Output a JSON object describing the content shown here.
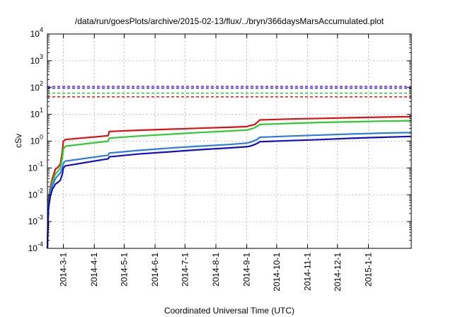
{
  "chart_data": {
    "type": "line",
    "title": "/data/run/goesPlots/archive/2015-02-13/flux/../bryn/366daysMarsAccumulated.plot",
    "xlabel": "Coordinated Universal Time (UTC)",
    "ylabel": "cSv",
    "y_scale": "log",
    "ylim": [
      0.0001,
      10000
    ],
    "xlim": [
      "2014-02-13",
      "2015-02-13"
    ],
    "grid": true,
    "y_ticks": [
      {
        "value": 0.0001,
        "base": "10",
        "exp": "-4"
      },
      {
        "value": 0.001,
        "base": "10",
        "exp": "-3"
      },
      {
        "value": 0.01,
        "base": "10",
        "exp": "-2"
      },
      {
        "value": 0.1,
        "base": "10",
        "exp": "-1"
      },
      {
        "value": 1,
        "base": "10",
        "exp": "0"
      },
      {
        "value": 10,
        "base": "10",
        "exp": "1"
      },
      {
        "value": 100,
        "base": "10",
        "exp": "2"
      },
      {
        "value": 1000,
        "base": "10",
        "exp": "3"
      },
      {
        "value": 10000,
        "base": "10",
        "exp": "4"
      }
    ],
    "x_ticks": [
      "2014-3-1",
      "2014-4-1",
      "2014-5-1",
      "2014-6-1",
      "2014-7-1",
      "2014-8-1",
      "2014-9-1",
      "2014-10-1",
      "2014-11-1",
      "2014-12-1",
      "2015-1-1"
    ],
    "reference_lines": [
      {
        "color": "#a020f0",
        "value": 110
      },
      {
        "color": "#1f3fd0",
        "value": 95
      },
      {
        "color": "#2ecc2e",
        "value": 62
      },
      {
        "color": "#e01010",
        "value": 45
      }
    ],
    "series": [
      {
        "color": "#e01010",
        "x": [
          "2014-02-13",
          "2014-02-14",
          "2014-02-16",
          "2014-02-18",
          "2014-02-21",
          "2014-02-24",
          "2014-02-26",
          "2014-02-28",
          "2014-03-01",
          "2014-03-03",
          "2014-04-15",
          "2014-04-16",
          "2014-05-15",
          "2014-06-15",
          "2014-07-15",
          "2014-08-15",
          "2014-09-01",
          "2014-09-04",
          "2014-09-06",
          "2014-09-09",
          "2014-09-12",
          "2014-09-14",
          "2014-10-15",
          "2014-11-15",
          "2014-12-15",
          "2015-01-15",
          "2015-02-13"
        ],
        "y": [
          0.0001,
          0.006,
          0.02,
          0.04,
          0.09,
          0.11,
          0.14,
          0.4,
          1.0,
          1.15,
          1.6,
          2.3,
          2.55,
          2.8,
          3.05,
          3.3,
          3.5,
          3.8,
          3.9,
          4.2,
          5.2,
          6.2,
          6.7,
          7.1,
          7.5,
          7.9,
          8.2
        ]
      },
      {
        "color": "#2ecc2e",
        "x": [
          "2014-02-13",
          "2014-02-14",
          "2014-02-16",
          "2014-02-18",
          "2014-02-21",
          "2014-02-24",
          "2014-02-26",
          "2014-02-28",
          "2014-03-01",
          "2014-03-03",
          "2014-04-15",
          "2014-04-16",
          "2014-05-15",
          "2014-06-15",
          "2014-07-15",
          "2014-08-15",
          "2014-09-01",
          "2014-09-04",
          "2014-09-06",
          "2014-09-09",
          "2014-09-12",
          "2014-09-14",
          "2014-10-15",
          "2014-11-15",
          "2014-12-15",
          "2015-01-15",
          "2015-02-13"
        ],
        "y": [
          0.0001,
          0.005,
          0.015,
          0.03,
          0.06,
          0.08,
          0.1,
          0.25,
          0.5,
          0.65,
          1.0,
          1.3,
          1.55,
          1.8,
          2.1,
          2.4,
          2.6,
          2.8,
          2.9,
          3.2,
          3.7,
          4.2,
          4.6,
          5.0,
          5.3,
          5.6,
          5.8
        ]
      },
      {
        "color": "#2a7de1",
        "x": [
          "2014-02-13",
          "2014-02-14",
          "2014-02-16",
          "2014-02-18",
          "2014-02-21",
          "2014-02-24",
          "2014-02-26",
          "2014-02-28",
          "2014-03-01",
          "2014-03-03",
          "2014-04-15",
          "2014-04-16",
          "2014-05-15",
          "2014-06-15",
          "2014-07-15",
          "2014-08-15",
          "2014-09-01",
          "2014-09-04",
          "2014-09-06",
          "2014-09-09",
          "2014-09-12",
          "2014-09-14",
          "2014-10-15",
          "2014-11-15",
          "2014-12-15",
          "2015-01-15",
          "2015-02-13"
        ],
        "y": [
          0.0001,
          0.004,
          0.012,
          0.022,
          0.04,
          0.055,
          0.065,
          0.1,
          0.15,
          0.18,
          0.3,
          0.36,
          0.45,
          0.55,
          0.65,
          0.75,
          0.85,
          0.9,
          0.95,
          1.05,
          1.2,
          1.4,
          1.55,
          1.7,
          1.85,
          2.0,
          2.1
        ]
      },
      {
        "color": "#1010c8",
        "x": [
          "2014-02-13",
          "2014-02-14",
          "2014-02-16",
          "2014-02-18",
          "2014-02-21",
          "2014-02-24",
          "2014-02-26",
          "2014-02-28",
          "2014-03-01",
          "2014-03-03",
          "2014-04-15",
          "2014-04-16",
          "2014-05-15",
          "2014-06-15",
          "2014-07-15",
          "2014-08-15",
          "2014-09-01",
          "2014-09-04",
          "2014-09-06",
          "2014-09-09",
          "2014-09-12",
          "2014-09-14",
          "2014-10-15",
          "2014-11-15",
          "2014-12-15",
          "2015-01-15",
          "2015-02-13"
        ],
        "y": [
          0.0001,
          0.003,
          0.009,
          0.016,
          0.025,
          0.03,
          0.035,
          0.06,
          0.1,
          0.12,
          0.22,
          0.26,
          0.33,
          0.4,
          0.48,
          0.56,
          0.62,
          0.65,
          0.68,
          0.75,
          0.85,
          0.95,
          1.05,
          1.15,
          1.28,
          1.4,
          1.5
        ]
      }
    ]
  }
}
